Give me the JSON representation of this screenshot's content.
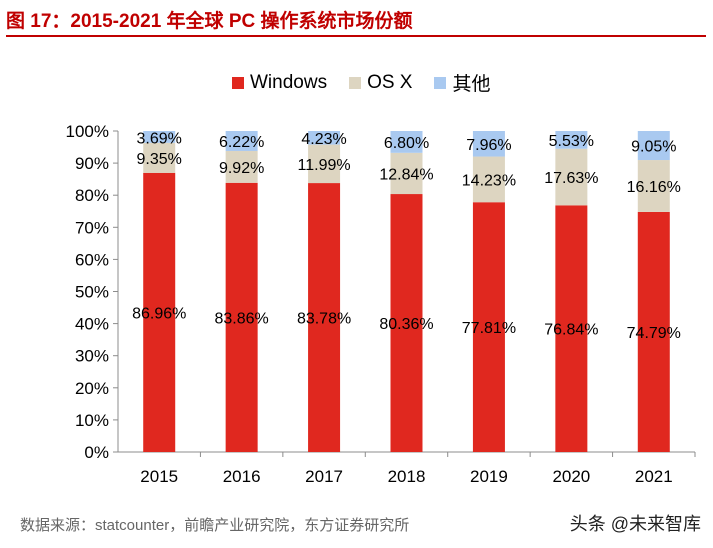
{
  "header": {
    "title": "图 17：2015-2021 年全球 PC 操作系统市场份额"
  },
  "footer": {
    "source": "数据来源：statcounter，前瞻产业研究院，东方证券研究所",
    "watermark": "头条 @未来智库"
  },
  "colors": {
    "windows": "#e0281f",
    "osx": "#ddd5c1",
    "other": "#a9c9f0",
    "title": "#c00000"
  },
  "chart_data": {
    "type": "bar",
    "stacked": true,
    "title": "2015-2021 年全球 PC 操作系统市场份额",
    "categories": [
      "2015",
      "2016",
      "2017",
      "2018",
      "2019",
      "2020",
      "2021"
    ],
    "series": [
      {
        "name": "Windows",
        "values": [
          86.96,
          83.86,
          83.78,
          80.36,
          77.81,
          76.84,
          74.79
        ],
        "labels": [
          "86.96%",
          "83.86%",
          "83.78%",
          "80.36%",
          "77.81%",
          "76.84%",
          "74.79%"
        ]
      },
      {
        "name": "OS X",
        "values": [
          9.35,
          9.92,
          11.99,
          12.84,
          14.23,
          17.63,
          16.16
        ],
        "labels": [
          "9.35%",
          "9.92%",
          "11.99%",
          "12.84%",
          "14.23%",
          "17.63%",
          "16.16%"
        ]
      },
      {
        "name": "其他",
        "values": [
          3.69,
          6.22,
          4.23,
          6.8,
          7.96,
          5.53,
          9.05
        ],
        "labels": [
          "3.69%",
          "6.22%",
          "4.23%",
          "6.80%",
          "7.96%",
          "5.53%",
          "9.05%"
        ]
      }
    ],
    "yticks": [
      "0%",
      "10%",
      "20%",
      "30%",
      "40%",
      "50%",
      "60%",
      "70%",
      "80%",
      "90%",
      "100%"
    ],
    "ylim": [
      0,
      100
    ],
    "legend_position": "top"
  }
}
